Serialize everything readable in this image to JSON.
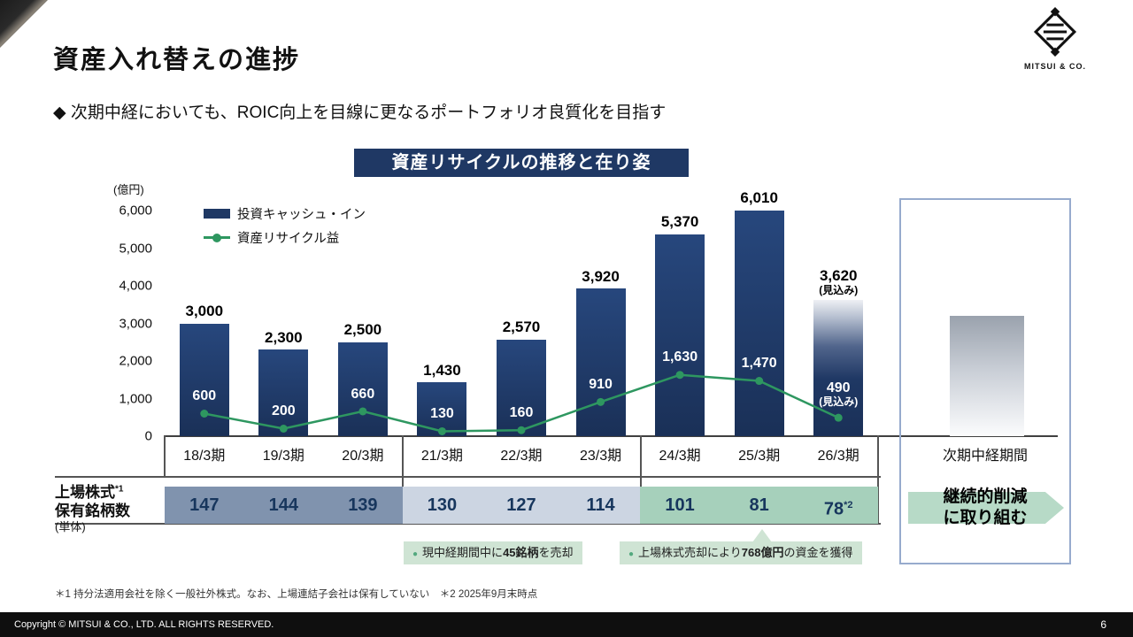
{
  "header": {
    "title": "資産入れ替えの進捗",
    "subtitle": "◆ 次期中経においても、ROIC向上を目線に更なるポートフォリオ良質化を目指す"
  },
  "logo": {
    "text": "MITSUI & CO."
  },
  "chart": {
    "title": "資産リサイクルの推移と在り姿",
    "unit_label": "(億円)",
    "legend_bar": "投資キャッシュ・イン",
    "legend_line": "資産リサイクル益"
  },
  "chart_data": {
    "type": "bar+line",
    "title": "資産リサイクルの推移と在り姿",
    "unit": "億円",
    "categories": [
      "18/3期",
      "19/3期",
      "20/3期",
      "21/3期",
      "22/3期",
      "23/3期",
      "24/3期",
      "25/3期",
      "26/3期"
    ],
    "series": [
      {
        "name": "投資キャッシュ・イン",
        "type": "bar",
        "color": "#1f3864",
        "values": [
          3000,
          2300,
          2500,
          1430,
          2570,
          3920,
          5370,
          6010,
          3620
        ],
        "labels": [
          "3,000",
          "2,300",
          "2,500",
          "1,430",
          "2,570",
          "3,920",
          "5,370",
          "6,010",
          "3,620"
        ]
      },
      {
        "name": "資産リサイクル益",
        "type": "line",
        "color": "#2e9760",
        "values": [
          600,
          200,
          660,
          130,
          160,
          910,
          1630,
          1470,
          490
        ],
        "labels": [
          "600",
          "200",
          "660",
          "130",
          "160",
          "910",
          "1,630",
          "1,470",
          "490"
        ]
      }
    ],
    "forecast_index": 8,
    "forecast_note": "(見込み)",
    "ylim": [
      0,
      6000
    ],
    "yticks": [
      "0",
      "1,000",
      "2,000",
      "3,000",
      "4,000",
      "5,000",
      "6,000"
    ],
    "future_period_label": "次期中経期間",
    "legend_position": "top-left",
    "grid": false
  },
  "table": {
    "row_label": "上場株式",
    "row_label_sup": "*1",
    "row_label2": "保有銘柄数",
    "row_label3": "(単体)",
    "values": [
      "147",
      "144",
      "139",
      "130",
      "127",
      "114",
      "101",
      "81",
      "78"
    ],
    "last_value_sup": "*2",
    "future_action_line1": "継続的削減",
    "future_action_line2": "に取り組む"
  },
  "callouts": [
    {
      "prefix": "現中経期間中に",
      "bold": "45銘柄",
      "suffix": "を売却"
    },
    {
      "prefix": "上場株式売却により",
      "bold": "768億円",
      "suffix": "の資金を獲得"
    }
  ],
  "footnote": "＊1 持分法適用会社を除く一般社外株式。なお、上場連結子会社は保有していない　＊2 2025年9月末時点",
  "footer": {
    "copyright": "Copyright © MITSUI & CO., LTD. ALL RIGHTS RESERVED.",
    "page": "6"
  }
}
